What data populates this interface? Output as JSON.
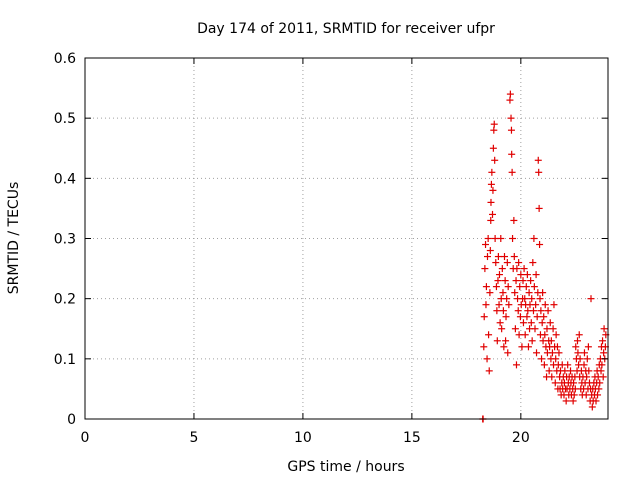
{
  "chart_data": {
    "type": "scatter",
    "title": "Day 174 of 2011, SRMTID for receiver ufpr",
    "xlabel": "GPS time / hours",
    "ylabel": "SRMTID / TECUs",
    "xlim": [
      0,
      24
    ],
    "ylim": [
      0,
      0.6
    ],
    "xticks": [
      0,
      5,
      10,
      15,
      20
    ],
    "yticks": [
      0,
      0.1,
      0.2,
      0.3,
      0.4,
      0.5,
      0.6
    ],
    "grid": true,
    "marker": "+",
    "color": "#e00000",
    "series": [
      {
        "name": "SRMTID",
        "points": [
          [
            18.25,
            0.0
          ],
          [
            18.27,
            0.0
          ],
          [
            18.3,
            0.12
          ],
          [
            18.32,
            0.17
          ],
          [
            18.35,
            0.25
          ],
          [
            18.38,
            0.29
          ],
          [
            18.4,
            0.19
          ],
          [
            18.42,
            0.22
          ],
          [
            18.45,
            0.1
          ],
          [
            18.47,
            0.27
          ],
          [
            18.5,
            0.3
          ],
          [
            18.52,
            0.14
          ],
          [
            18.55,
            0.08
          ],
          [
            18.58,
            0.21
          ],
          [
            18.6,
            0.28
          ],
          [
            18.62,
            0.33
          ],
          [
            18.63,
            0.36
          ],
          [
            18.65,
            0.39
          ],
          [
            18.67,
            0.41
          ],
          [
            18.7,
            0.34
          ],
          [
            18.72,
            0.38
          ],
          [
            18.74,
            0.45
          ],
          [
            18.76,
            0.48
          ],
          [
            18.78,
            0.49
          ],
          [
            18.8,
            0.43
          ],
          [
            18.82,
            0.3
          ],
          [
            18.85,
            0.26
          ],
          [
            18.88,
            0.22
          ],
          [
            18.9,
            0.18
          ],
          [
            18.92,
            0.13
          ],
          [
            18.95,
            0.23
          ],
          [
            18.97,
            0.27
          ],
          [
            19.0,
            0.19
          ],
          [
            19.02,
            0.24
          ],
          [
            19.05,
            0.16
          ],
          [
            19.08,
            0.3
          ],
          [
            19.1,
            0.2
          ],
          [
            19.12,
            0.15
          ],
          [
            19.15,
            0.25
          ],
          [
            19.18,
            0.21
          ],
          [
            19.2,
            0.18
          ],
          [
            19.22,
            0.12
          ],
          [
            19.25,
            0.27
          ],
          [
            19.28,
            0.23
          ],
          [
            19.3,
            0.13
          ],
          [
            19.32,
            0.17
          ],
          [
            19.35,
            0.2
          ],
          [
            19.38,
            0.26
          ],
          [
            19.4,
            0.11
          ],
          [
            19.42,
            0.22
          ],
          [
            19.45,
            0.19
          ],
          [
            19.5,
            0.53
          ],
          [
            19.52,
            0.54
          ],
          [
            19.55,
            0.5
          ],
          [
            19.57,
            0.48
          ],
          [
            19.58,
            0.44
          ],
          [
            19.6,
            0.41
          ],
          [
            19.62,
            0.3
          ],
          [
            19.65,
            0.25
          ],
          [
            19.68,
            0.33
          ],
          [
            19.7,
            0.27
          ],
          [
            19.72,
            0.21
          ],
          [
            19.75,
            0.15
          ],
          [
            19.78,
            0.23
          ],
          [
            19.8,
            0.09
          ],
          [
            19.82,
            0.25
          ],
          [
            19.85,
            0.2
          ],
          [
            19.88,
            0.18
          ],
          [
            19.9,
            0.26
          ],
          [
            19.92,
            0.14
          ],
          [
            19.95,
            0.22
          ],
          [
            19.98,
            0.17
          ],
          [
            20.0,
            0.24
          ],
          [
            20.02,
            0.19
          ],
          [
            20.05,
            0.12
          ],
          [
            20.08,
            0.2
          ],
          [
            20.1,
            0.23
          ],
          [
            20.12,
            0.16
          ],
          [
            20.15,
            0.25
          ],
          [
            20.18,
            0.2
          ],
          [
            20.2,
            0.14
          ],
          [
            20.22,
            0.19
          ],
          [
            20.25,
            0.22
          ],
          [
            20.28,
            0.17
          ],
          [
            20.3,
            0.24
          ],
          [
            20.32,
            0.18
          ],
          [
            20.35,
            0.12
          ],
          [
            20.38,
            0.21
          ],
          [
            20.4,
            0.15
          ],
          [
            20.42,
            0.19
          ],
          [
            20.45,
            0.23
          ],
          [
            20.48,
            0.16
          ],
          [
            20.5,
            0.2
          ],
          [
            20.52,
            0.13
          ],
          [
            20.55,
            0.26
          ],
          [
            20.58,
            0.18
          ],
          [
            20.6,
            0.3
          ],
          [
            20.62,
            0.22
          ],
          [
            20.65,
            0.15
          ],
          [
            20.68,
            0.19
          ],
          [
            20.7,
            0.24
          ],
          [
            20.72,
            0.11
          ],
          [
            20.75,
            0.17
          ],
          [
            20.78,
            0.21
          ],
          [
            20.8,
            0.43
          ],
          [
            20.82,
            0.41
          ],
          [
            20.84,
            0.35
          ],
          [
            20.86,
            0.29
          ],
          [
            20.88,
            0.2
          ],
          [
            20.9,
            0.14
          ],
          [
            20.92,
            0.18
          ],
          [
            20.95,
            0.1
          ],
          [
            20.98,
            0.16
          ],
          [
            21.0,
            0.21
          ],
          [
            21.02,
            0.13
          ],
          [
            21.05,
            0.17
          ],
          [
            21.08,
            0.09
          ],
          [
            21.1,
            0.14
          ],
          [
            21.12,
            0.19
          ],
          [
            21.15,
            0.12
          ],
          [
            21.18,
            0.07
          ],
          [
            21.2,
            0.15
          ],
          [
            21.22,
            0.11
          ],
          [
            21.25,
            0.18
          ],
          [
            21.28,
            0.13
          ],
          [
            21.3,
            0.08
          ],
          [
            21.32,
            0.12
          ],
          [
            21.35,
            0.16
          ],
          [
            21.38,
            0.1
          ],
          [
            21.4,
            0.13
          ],
          [
            21.42,
            0.07
          ],
          [
            21.45,
            0.11
          ],
          [
            21.48,
            0.15
          ],
          [
            21.5,
            0.09
          ],
          [
            21.52,
            0.19
          ],
          [
            21.55,
            0.12
          ],
          [
            21.58,
            0.06
          ],
          [
            21.6,
            0.1
          ],
          [
            21.62,
            0.14
          ],
          [
            21.65,
            0.08
          ],
          [
            21.68,
            0.12
          ],
          [
            21.7,
            0.05
          ],
          [
            21.72,
            0.09
          ],
          [
            21.75,
            0.11
          ],
          [
            21.78,
            0.07
          ],
          [
            21.8,
            0.05
          ],
          [
            21.82,
            0.08
          ],
          [
            21.85,
            0.04
          ],
          [
            21.88,
            0.06
          ],
          [
            21.9,
            0.09
          ],
          [
            21.92,
            0.05
          ],
          [
            21.95,
            0.07
          ],
          [
            21.98,
            0.04
          ],
          [
            22.0,
            0.06
          ],
          [
            22.02,
            0.08
          ],
          [
            22.05,
            0.05
          ],
          [
            22.08,
            0.03
          ],
          [
            22.1,
            0.07
          ],
          [
            22.12,
            0.05
          ],
          [
            22.15,
            0.09
          ],
          [
            22.18,
            0.06
          ],
          [
            22.2,
            0.04
          ],
          [
            22.22,
            0.07
          ],
          [
            22.25,
            0.05
          ],
          [
            22.28,
            0.08
          ],
          [
            22.3,
            0.06
          ],
          [
            22.32,
            0.04
          ],
          [
            22.35,
            0.07
          ],
          [
            22.38,
            0.05
          ],
          [
            22.4,
            0.03
          ],
          [
            22.42,
            0.06
          ],
          [
            22.45,
            0.04
          ],
          [
            22.48,
            0.07
          ],
          [
            22.5,
            0.05
          ],
          [
            22.52,
            0.12
          ],
          [
            22.55,
            0.1
          ],
          [
            22.58,
            0.08
          ],
          [
            22.6,
            0.13
          ],
          [
            22.62,
            0.11
          ],
          [
            22.65,
            0.09
          ],
          [
            22.68,
            0.14
          ],
          [
            22.7,
            0.07
          ],
          [
            22.72,
            0.1
          ],
          [
            22.75,
            0.05
          ],
          [
            22.78,
            0.08
          ],
          [
            22.8,
            0.06
          ],
          [
            22.82,
            0.04
          ],
          [
            22.85,
            0.07
          ],
          [
            22.88,
            0.05
          ],
          [
            22.9,
            0.09
          ],
          [
            22.92,
            0.11
          ],
          [
            22.95,
            0.06
          ],
          [
            22.98,
            0.08
          ],
          [
            23.0,
            0.04
          ],
          [
            23.02,
            0.07
          ],
          [
            23.05,
            0.1
          ],
          [
            23.08,
            0.05
          ],
          [
            23.1,
            0.12
          ],
          [
            23.12,
            0.08
          ],
          [
            23.15,
            0.06
          ],
          [
            23.18,
            0.03
          ],
          [
            23.2,
            0.05
          ],
          [
            23.22,
            0.2
          ],
          [
            23.25,
            0.04
          ],
          [
            23.28,
            0.02
          ],
          [
            23.3,
            0.05
          ],
          [
            23.32,
            0.03
          ],
          [
            23.35,
            0.06
          ],
          [
            23.38,
            0.04
          ],
          [
            23.4,
            0.07
          ],
          [
            23.42,
            0.05
          ],
          [
            23.45,
            0.03
          ],
          [
            23.48,
            0.06
          ],
          [
            23.5,
            0.08
          ],
          [
            23.52,
            0.04
          ],
          [
            23.55,
            0.07
          ],
          [
            23.58,
            0.05
          ],
          [
            23.6,
            0.09
          ],
          [
            23.62,
            0.06
          ],
          [
            23.65,
            0.1
          ],
          [
            23.68,
            0.08
          ],
          [
            23.7,
            0.12
          ],
          [
            23.72,
            0.09
          ],
          [
            23.75,
            0.13
          ],
          [
            23.78,
            0.07
          ],
          [
            23.8,
            0.11
          ],
          [
            23.82,
            0.15
          ],
          [
            23.85,
            0.1
          ],
          [
            23.88,
            0.12
          ],
          [
            23.9,
            0.14
          ]
        ]
      }
    ]
  }
}
